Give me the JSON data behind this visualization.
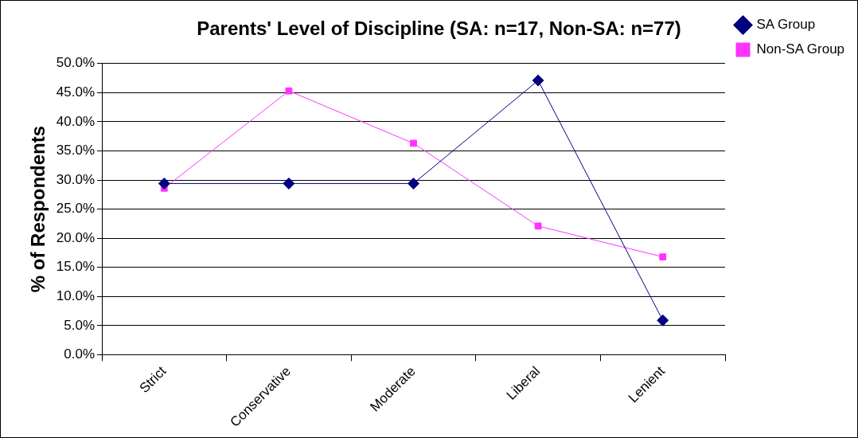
{
  "chart_data": {
    "type": "line",
    "title": "Parents' Level of Discipline (SA: n=17, Non-SA: n=77)",
    "ylabel": "% of Respondents",
    "categories": [
      "Strict",
      "Conservative",
      "Moderate",
      "Liberal",
      "Lenient"
    ],
    "series": [
      {
        "name": "SA Group",
        "color": "#000080",
        "values": [
          29.4,
          29.4,
          29.4,
          47.1,
          5.9
        ],
        "marker": "diamond"
      },
      {
        "name": "Non-SA Group",
        "color": "#ff33ff",
        "values": [
          28.6,
          45.3,
          36.3,
          22.1,
          16.8
        ],
        "marker": "square"
      }
    ],
    "ylim": [
      0,
      50
    ],
    "yticks": [
      {
        "value": 0,
        "label": "0.0%"
      },
      {
        "value": 5,
        "label": "5.0%"
      },
      {
        "value": 10,
        "label": "10.0%"
      },
      {
        "value": 15,
        "label": "15.0%"
      },
      {
        "value": 20,
        "label": "20.0%"
      },
      {
        "value": 25,
        "label": "25.0%"
      },
      {
        "value": 30,
        "label": "30.0%"
      },
      {
        "value": 35,
        "label": "35.0%"
      },
      {
        "value": 40,
        "label": "40.0%"
      },
      {
        "value": 45,
        "label": "45.0%"
      },
      {
        "value": 50,
        "label": "50.0%"
      }
    ],
    "grid": "y",
    "legend": "right",
    "line_style": "solid"
  }
}
